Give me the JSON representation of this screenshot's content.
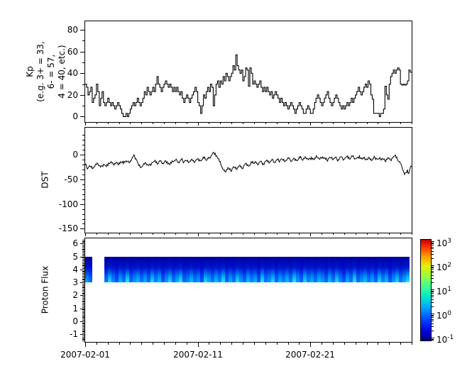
{
  "figure": {
    "background": "#ffffff",
    "line_color": "#000000"
  },
  "x_axis": {
    "start": "2007-02-01",
    "span_days": 29,
    "major_ticks_days": [
      0,
      10,
      20
    ],
    "major_tick_labels": [
      "2007-02-01",
      "2007-02-11",
      "2007-02-21"
    ],
    "minor_tick_interval_days": 1
  },
  "chart_data": [
    {
      "id": "kp",
      "type": "step-line",
      "ylabel_lines": [
        "Kp",
        "(e.g. 3+ = 33,",
        "6- = 57,",
        "4 = 40, etc.)"
      ],
      "yticks": [
        0,
        20,
        40,
        60,
        80
      ],
      "yminor_step": 10,
      "ylim": [
        -5,
        88
      ],
      "start": "2007-02-01",
      "cadence_hours": 3,
      "values": [
        30,
        27,
        20,
        23,
        27,
        13,
        17,
        20,
        30,
        23,
        10,
        17,
        23,
        13,
        10,
        13,
        17,
        13,
        10,
        13,
        10,
        7,
        10,
        13,
        10,
        7,
        3,
        0,
        0,
        3,
        0,
        3,
        7,
        10,
        13,
        10,
        13,
        17,
        13,
        10,
        13,
        17,
        23,
        20,
        27,
        23,
        20,
        23,
        27,
        23,
        30,
        37,
        30,
        27,
        23,
        27,
        30,
        33,
        30,
        27,
        30,
        27,
        23,
        27,
        23,
        27,
        23,
        20,
        23,
        17,
        13,
        17,
        20,
        17,
        13,
        17,
        20,
        23,
        27,
        23,
        13,
        10,
        3,
        10,
        20,
        17,
        23,
        27,
        23,
        30,
        27,
        10,
        20,
        30,
        33,
        27,
        33,
        30,
        37,
        33,
        40,
        37,
        33,
        37,
        40,
        47,
        43,
        57,
        47,
        43,
        40,
        43,
        33,
        37,
        45,
        43,
        28,
        45,
        40,
        30,
        33,
        30,
        27,
        30,
        33,
        27,
        23,
        27,
        23,
        27,
        23,
        20,
        23,
        17,
        20,
        23,
        20,
        17,
        13,
        17,
        13,
        10,
        13,
        10,
        7,
        10,
        13,
        10,
        7,
        3,
        7,
        10,
        13,
        10,
        7,
        3,
        3,
        7,
        10,
        7,
        3,
        3,
        7,
        13,
        17,
        20,
        17,
        13,
        10,
        13,
        17,
        20,
        23,
        17,
        13,
        10,
        13,
        17,
        20,
        17,
        13,
        10,
        7,
        10,
        7,
        10,
        13,
        10,
        13,
        17,
        13,
        17,
        20,
        23,
        27,
        23,
        20,
        23,
        27,
        30,
        27,
        33,
        30,
        20,
        16,
        3,
        3,
        3,
        3,
        0,
        3,
        3,
        7,
        28,
        20,
        16,
        30,
        37,
        40,
        43,
        40,
        43,
        45,
        43,
        30,
        29,
        30,
        29,
        30,
        33,
        43,
        41
      ]
    },
    {
      "id": "dst",
      "type": "line",
      "ylabel": "DST",
      "yticks": [
        0,
        -50,
        -100,
        -150
      ],
      "yminor_step": 10,
      "ylim": [
        -158,
        55
      ],
      "start": "2007-02-01",
      "cadence_hours": 3,
      "values": [
        -20,
        -24,
        -27,
        -22,
        -25,
        -28,
        -25,
        -22,
        -20,
        -18,
        -22,
        -25,
        -22,
        -19,
        -21,
        -24,
        -22,
        -18,
        -15,
        -17,
        -20,
        -17,
        -15,
        -18,
        -16,
        -14,
        -16,
        -18,
        -15,
        -12,
        -14,
        -16,
        -12,
        -8,
        -4,
        -3,
        -8,
        -15,
        -22,
        -26,
        -24,
        -21,
        -19,
        -17,
        -20,
        -22,
        -19,
        -17,
        -15,
        -13,
        -16,
        -19,
        -16,
        -13,
        -15,
        -17,
        -15,
        -12,
        -14,
        -17,
        -20,
        -17,
        -14,
        -12,
        -10,
        -12,
        -15,
        -13,
        -10,
        -12,
        -14,
        -11,
        -13,
        -16,
        -13,
        -10,
        -12,
        -15,
        -12,
        -10,
        -8,
        -10,
        -12,
        -9,
        -7,
        -9,
        -11,
        -8,
        -6,
        -3,
        2,
        5,
        3,
        -2,
        -8,
        -14,
        -20,
        -26,
        -31,
        -35,
        -30,
        -26,
        -30,
        -33,
        -28,
        -24,
        -27,
        -30,
        -25,
        -22,
        -25,
        -28,
        -24,
        -20,
        -17,
        -20,
        -23,
        -19,
        -16,
        -18,
        -15,
        -17,
        -20,
        -16,
        -13,
        -15,
        -18,
        -15,
        -12,
        -14,
        -17,
        -13,
        -10,
        -12,
        -15,
        -12,
        -10,
        -13,
        -10,
        -8,
        -11,
        -14,
        -11,
        -9,
        -7,
        -10,
        -13,
        -10,
        -7,
        -9,
        -12,
        -9,
        -6,
        -8,
        -11,
        -8,
        -5,
        -7,
        -10,
        -7,
        -5,
        -7,
        -10,
        -7,
        -4,
        -6,
        -9,
        -6,
        -4,
        -6,
        -9,
        -11,
        -8,
        -5,
        -7,
        -10,
        -7,
        -5,
        -8,
        -10,
        -7,
        -4,
        -6,
        -9,
        -6,
        -4,
        -7,
        -9,
        -6,
        -3,
        -5,
        -8,
        -8,
        -5,
        -2,
        -6,
        -9,
        -7,
        -10,
        -8,
        -9,
        -6,
        -8,
        -11,
        -8,
        -5,
        -7,
        -9,
        -8,
        -10,
        -7,
        -9,
        -12,
        -9,
        -6,
        -8,
        -10,
        -7,
        -4,
        -2,
        -6,
        -10,
        -14,
        -18,
        -24,
        -32,
        -40,
        -36,
        -30,
        -38,
        -26,
        -24
      ]
    },
    {
      "id": "proton_flux",
      "type": "spectrogram",
      "ylabel": "Proton Flux",
      "yticks": [
        -1,
        0,
        1,
        2,
        3,
        4,
        5,
        6
      ],
      "yminor_step": 0.1,
      "ylim": [
        -1.6,
        6.4
      ],
      "band_y": [
        3,
        5
      ],
      "segments": [
        {
          "start_day": 0,
          "end_day": 0.88
        },
        {
          "start_day": 1.7,
          "end_day": 29
        }
      ],
      "colormap": "jet",
      "scale": "log",
      "flux_range_shown": [
        0.1,
        1000
      ],
      "intensity_pattern": [
        0.5,
        0.2,
        0.7,
        0.3,
        0.8,
        0.4,
        0.1,
        0.6,
        0.3,
        0.9,
        0.2,
        0.5,
        0.7,
        0.3,
        0.6,
        0.2,
        0.8,
        0.4,
        0.7,
        0.1,
        0.5,
        0.8,
        0.3,
        0.6,
        0.9,
        0.2,
        0.4,
        0.7,
        0.3,
        0.5,
        0.1,
        0.8,
        0.6,
        0.3,
        0.7,
        0.4,
        0.9,
        0.2,
        0.6,
        0.3,
        0.8,
        0.5,
        0.2,
        0.7,
        0.4,
        0.6,
        0.1,
        0.9,
        0.3,
        0.5,
        0.8,
        0.2,
        0.6,
        0.4,
        0.7,
        0.3,
        0.9,
        0.5,
        0.2,
        0.8,
        0.4,
        0.6,
        0.3,
        0.7
      ]
    }
  ],
  "colorbar": {
    "scale": "log",
    "min": 0.1,
    "max": 1000,
    "tick_base": "10",
    "tick_exponents": [
      3,
      2,
      1,
      0,
      -1
    ],
    "colormap": "jet"
  }
}
